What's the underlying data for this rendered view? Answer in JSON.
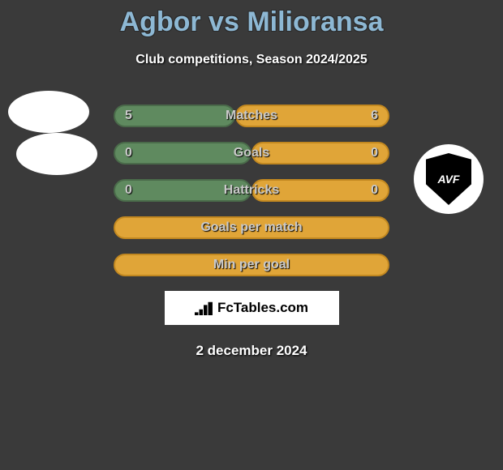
{
  "header": {
    "title": "Agbor vs Milioransa",
    "subtitle": "Club competitions, Season 2024/2025"
  },
  "chart": {
    "bar_total_width": 340,
    "rows": [
      {
        "label": "Matches",
        "left_val": "5",
        "right_val": "6",
        "left_w": 150,
        "right_w": 190,
        "left_color": "#5f8a5f",
        "left_border": "#4a6b4a",
        "right_color": "#e0a538",
        "right_border": "#c28820"
      },
      {
        "label": "Goals",
        "left_val": "0",
        "right_val": "0",
        "left_w": 170,
        "right_w": 170,
        "left_color": "#5f8a5f",
        "left_border": "#4a6b4a",
        "right_color": "#e0a538",
        "right_border": "#c28820"
      },
      {
        "label": "Hattricks",
        "left_val": "0",
        "right_val": "0",
        "left_w": 170,
        "right_w": 170,
        "left_color": "#5f8a5f",
        "left_border": "#4a6b4a",
        "right_color": "#e0a538",
        "right_border": "#c28820"
      },
      {
        "label": "Goals per match",
        "left_val": "",
        "right_val": "",
        "left_w": 0,
        "right_w": 340,
        "left_color": "#5f8a5f",
        "left_border": "#4a6b4a",
        "right_color": "#e0a538",
        "right_border": "#c28820"
      },
      {
        "label": "Min per goal",
        "left_val": "",
        "right_val": "",
        "left_w": 0,
        "right_w": 340,
        "left_color": "#5f8a5f",
        "left_border": "#4a6b4a",
        "right_color": "#e0a538",
        "right_border": "#c28820"
      }
    ]
  },
  "footer": {
    "brand": "FcTables.com",
    "date": "2 december 2024"
  },
  "badge_text": "AVF"
}
